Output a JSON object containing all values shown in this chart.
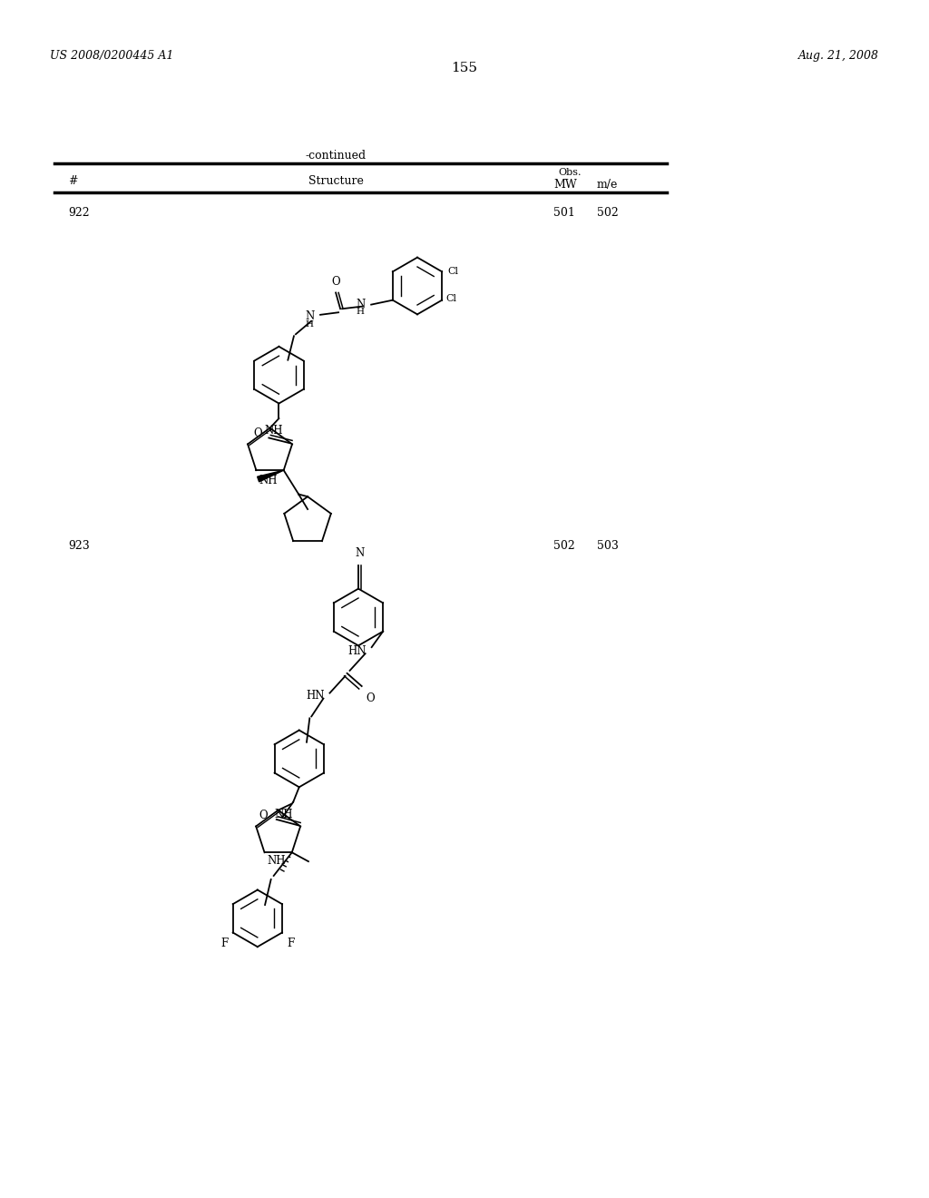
{
  "page_number": "155",
  "patent_number": "US 2008/0200445 A1",
  "date": "Aug. 21, 2008",
  "continued_label": "-continued",
  "table_header_hash": "#",
  "table_header_structure": "Structure",
  "table_header_mw": "MW",
  "table_header_obs": "Obs.",
  "table_header_mz": "m/e",
  "entry1_num": "922",
  "entry1_mw": "501",
  "entry1_mz": "502",
  "entry2_num": "923",
  "entry2_mw": "502",
  "entry2_mz": "503",
  "background_color": "#ffffff",
  "text_color": "#000000"
}
